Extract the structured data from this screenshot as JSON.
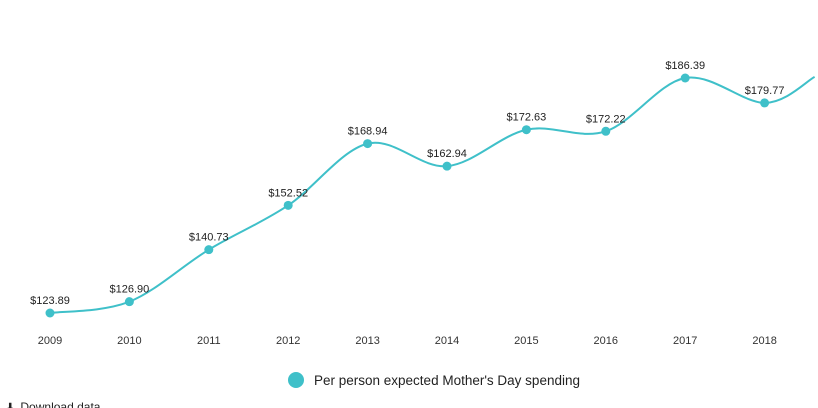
{
  "chart_data": {
    "type": "line",
    "title": "",
    "xlabel": "",
    "ylabel": "",
    "categories": [
      "2009",
      "2010",
      "2011",
      "2012",
      "2013",
      "2014",
      "2015",
      "2016",
      "2017",
      "2018"
    ],
    "series": [
      {
        "name": "Per person expected Mother's Day spending",
        "color": "#3fc0c9",
        "values": [
          123.89,
          126.9,
          140.73,
          152.52,
          168.94,
          162.94,
          172.63,
          172.22,
          186.39,
          179.77
        ],
        "labels": [
          "$123.89",
          "$126.90",
          "$140.73",
          "$152.52",
          "$168.94",
          "$162.94",
          "$172.63",
          "$172.22",
          "$186.39",
          "$179.77"
        ],
        "continues_past_last_point": true
      }
    ],
    "ylim": [
      123.89,
      186.39
    ],
    "grid": false,
    "legend_position": "bottom"
  },
  "legend": {
    "label": "Per person expected Mother's Day spending",
    "color": "#3fc0c9"
  },
  "footer": {
    "download_label": "Download data"
  }
}
